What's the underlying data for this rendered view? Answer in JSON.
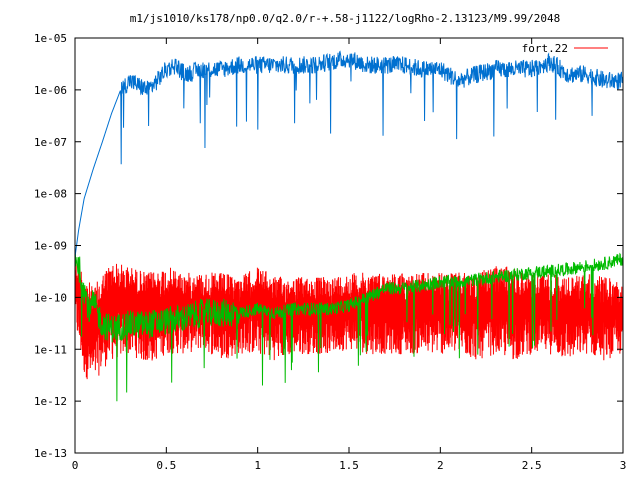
{
  "chart_data": {
    "type": "line",
    "title": "m1/js1010/ks178/np0.0/q2.0/r-+.58-j1122/logRho-2.13123/M9.99/2048",
    "xlabel": "",
    "ylabel": "",
    "xlim": [
      0,
      3
    ],
    "ylim": [
      1e-13,
      1e-05
    ],
    "yscale": "log",
    "grid": false,
    "legend_position": "top-right",
    "x_ticks": [
      {
        "value": 0,
        "label": "0"
      },
      {
        "value": 0.5,
        "label": "0.5"
      },
      {
        "value": 1,
        "label": "1"
      },
      {
        "value": 1.5,
        "label": "1.5"
      },
      {
        "value": 2,
        "label": "2"
      },
      {
        "value": 2.5,
        "label": "2.5"
      },
      {
        "value": 3,
        "label": "3"
      }
    ],
    "y_ticks": [
      {
        "value": 1e-13,
        "label": "1e-13"
      },
      {
        "value": 1e-12,
        "label": "1e-12"
      },
      {
        "value": 1e-11,
        "label": "1e-11"
      },
      {
        "value": 1e-10,
        "label": "1e-10"
      },
      {
        "value": 1e-09,
        "label": "1e-09"
      },
      {
        "value": 1e-08,
        "label": "1e-08"
      },
      {
        "value": 1e-07,
        "label": "1e-07"
      },
      {
        "value": 1e-06,
        "label": "1e-06"
      },
      {
        "value": 1e-05,
        "label": "1e-05"
      }
    ],
    "series": [
      {
        "name": "fort.22",
        "color": "#ff0000",
        "style": "noisy-band",
        "x": [
          0.0,
          0.05,
          0.1,
          0.15,
          0.2,
          0.3,
          0.4,
          0.5,
          0.6,
          0.7,
          0.8,
          0.9,
          1.0,
          1.1,
          1.2,
          1.3,
          1.4,
          1.5,
          1.6,
          1.7,
          1.8,
          1.9,
          2.0,
          2.1,
          2.2,
          2.3,
          2.4,
          2.5,
          2.6,
          2.7,
          2.8,
          2.9,
          3.0
        ],
        "upper": [
          7e-10,
          3e-10,
          1.5e-10,
          3e-10,
          5e-10,
          4e-10,
          3e-10,
          4e-10,
          3e-10,
          3e-10,
          3e-10,
          2.5e-10,
          4e-10,
          2.5e-10,
          2.5e-10,
          2.5e-10,
          2.5e-10,
          3e-10,
          3e-10,
          3e-10,
          3e-10,
          3e-10,
          3e-10,
          3e-10,
          3e-10,
          4e-10,
          4e-10,
          3e-10,
          3e-10,
          2.5e-10,
          3e-10,
          2.5e-10,
          2e-10
        ],
        "lower": [
          3e-11,
          3e-12,
          2e-12,
          4e-12,
          6e-12,
          8e-12,
          5e-12,
          8e-12,
          8e-12,
          1e-11,
          6e-12,
          8e-12,
          8e-12,
          6e-12,
          8e-12,
          8e-12,
          8e-12,
          1e-11,
          8e-12,
          8e-12,
          8e-12,
          8e-12,
          8e-12,
          8e-12,
          6e-12,
          8e-12,
          6e-12,
          8e-12,
          8e-12,
          6e-12,
          8e-12,
          6e-12,
          8e-12
        ]
      },
      {
        "name": "",
        "color": "#0070d0",
        "style": "line",
        "x": [
          0.0,
          0.02,
          0.05,
          0.1,
          0.15,
          0.2,
          0.25,
          0.3,
          0.35,
          0.4,
          0.45,
          0.5,
          0.55,
          0.6,
          0.7,
          0.8,
          0.9,
          1.0,
          1.1,
          1.2,
          1.3,
          1.4,
          1.5,
          1.6,
          1.7,
          1.8,
          1.9,
          2.0,
          2.1,
          2.2,
          2.3,
          2.4,
          2.5,
          2.6,
          2.7,
          2.8,
          2.9,
          3.0
        ],
        "values": [
          6e-10,
          2e-09,
          8e-09,
          3e-08,
          1e-07,
          3.5e-07,
          1e-06,
          1.5e-06,
          1.2e-06,
          1e-06,
          1.5e-06,
          2.5e-06,
          3e-06,
          2e-06,
          2.5e-06,
          2.5e-06,
          3e-06,
          3e-06,
          3e-06,
          3e-06,
          3e-06,
          3.5e-06,
          4e-06,
          3e-06,
          3e-06,
          3e-06,
          2.5e-06,
          2.5e-06,
          1.5e-06,
          2e-06,
          2.5e-06,
          2.5e-06,
          2.5e-06,
          3.5e-06,
          2e-06,
          2e-06,
          1.5e-06,
          1.5e-06
        ]
      },
      {
        "name": "",
        "color": "#00bb00",
        "style": "noisy-line",
        "x": [
          0.0,
          0.02,
          0.05,
          0.08,
          0.1,
          0.15,
          0.2,
          0.3,
          0.4,
          0.5,
          0.6,
          0.7,
          0.8,
          0.9,
          1.0,
          1.1,
          1.2,
          1.3,
          1.4,
          1.5,
          1.6,
          1.7,
          1.8,
          1.9,
          2.0,
          2.1,
          2.2,
          2.3,
          2.4,
          2.5,
          2.6,
          2.7,
          2.8,
          2.9,
          3.0
        ],
        "values": [
          7e-10,
          4e-10,
          1.5e-10,
          5e-11,
          8e-11,
          3e-11,
          2.5e-11,
          3e-11,
          3e-11,
          3.5e-11,
          4e-11,
          5e-11,
          5e-11,
          5e-11,
          6e-11,
          5e-11,
          6e-11,
          6e-11,
          6e-11,
          7e-11,
          1e-10,
          1.5e-10,
          1.5e-10,
          1.7e-10,
          2e-10,
          2e-10,
          2.2e-10,
          2.5e-10,
          2.7e-10,
          3e-10,
          3.2e-10,
          3.5e-10,
          4e-10,
          4.5e-10,
          5.5e-10
        ]
      }
    ]
  }
}
